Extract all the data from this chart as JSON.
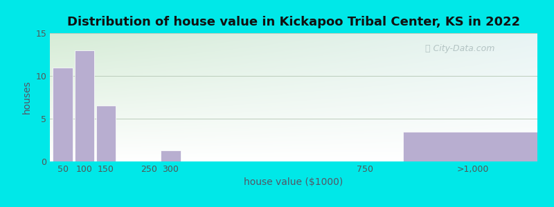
{
  "title": "Distribution of house value in Kickapoo Tribal Center, KS in 2022",
  "xlabel": "house value ($1000)",
  "ylabel": "houses",
  "bar_color": "#b8aed0",
  "bar_positions": [
    50,
    100,
    150,
    250,
    300,
    750,
    1000
  ],
  "bar_values": [
    11,
    13,
    6.5,
    0,
    1.3,
    0,
    3.5
  ],
  "bar_widths": [
    50,
    50,
    50,
    50,
    50,
    50,
    350
  ],
  "xlim": [
    20,
    1150
  ],
  "ylim": [
    0,
    15
  ],
  "yticks": [
    0,
    5,
    10,
    15
  ],
  "xtick_positions": [
    50,
    100,
    150,
    250,
    300,
    750,
    1000
  ],
  "xtick_labels": [
    "50",
    "100",
    "150",
    "250",
    "300",
    "750",
    ">1,000"
  ],
  "bg_outer": "#00e8e8",
  "bg_plot_topleft": "#d6ecd6",
  "bg_plot_topright": "#e0f0f0",
  "bg_plot_bottom": "#f5fff5",
  "grid_color": "#bbccbb",
  "title_fontsize": 13,
  "axis_label_fontsize": 10,
  "tick_fontsize": 9,
  "watermark_text": "City-Data.com"
}
